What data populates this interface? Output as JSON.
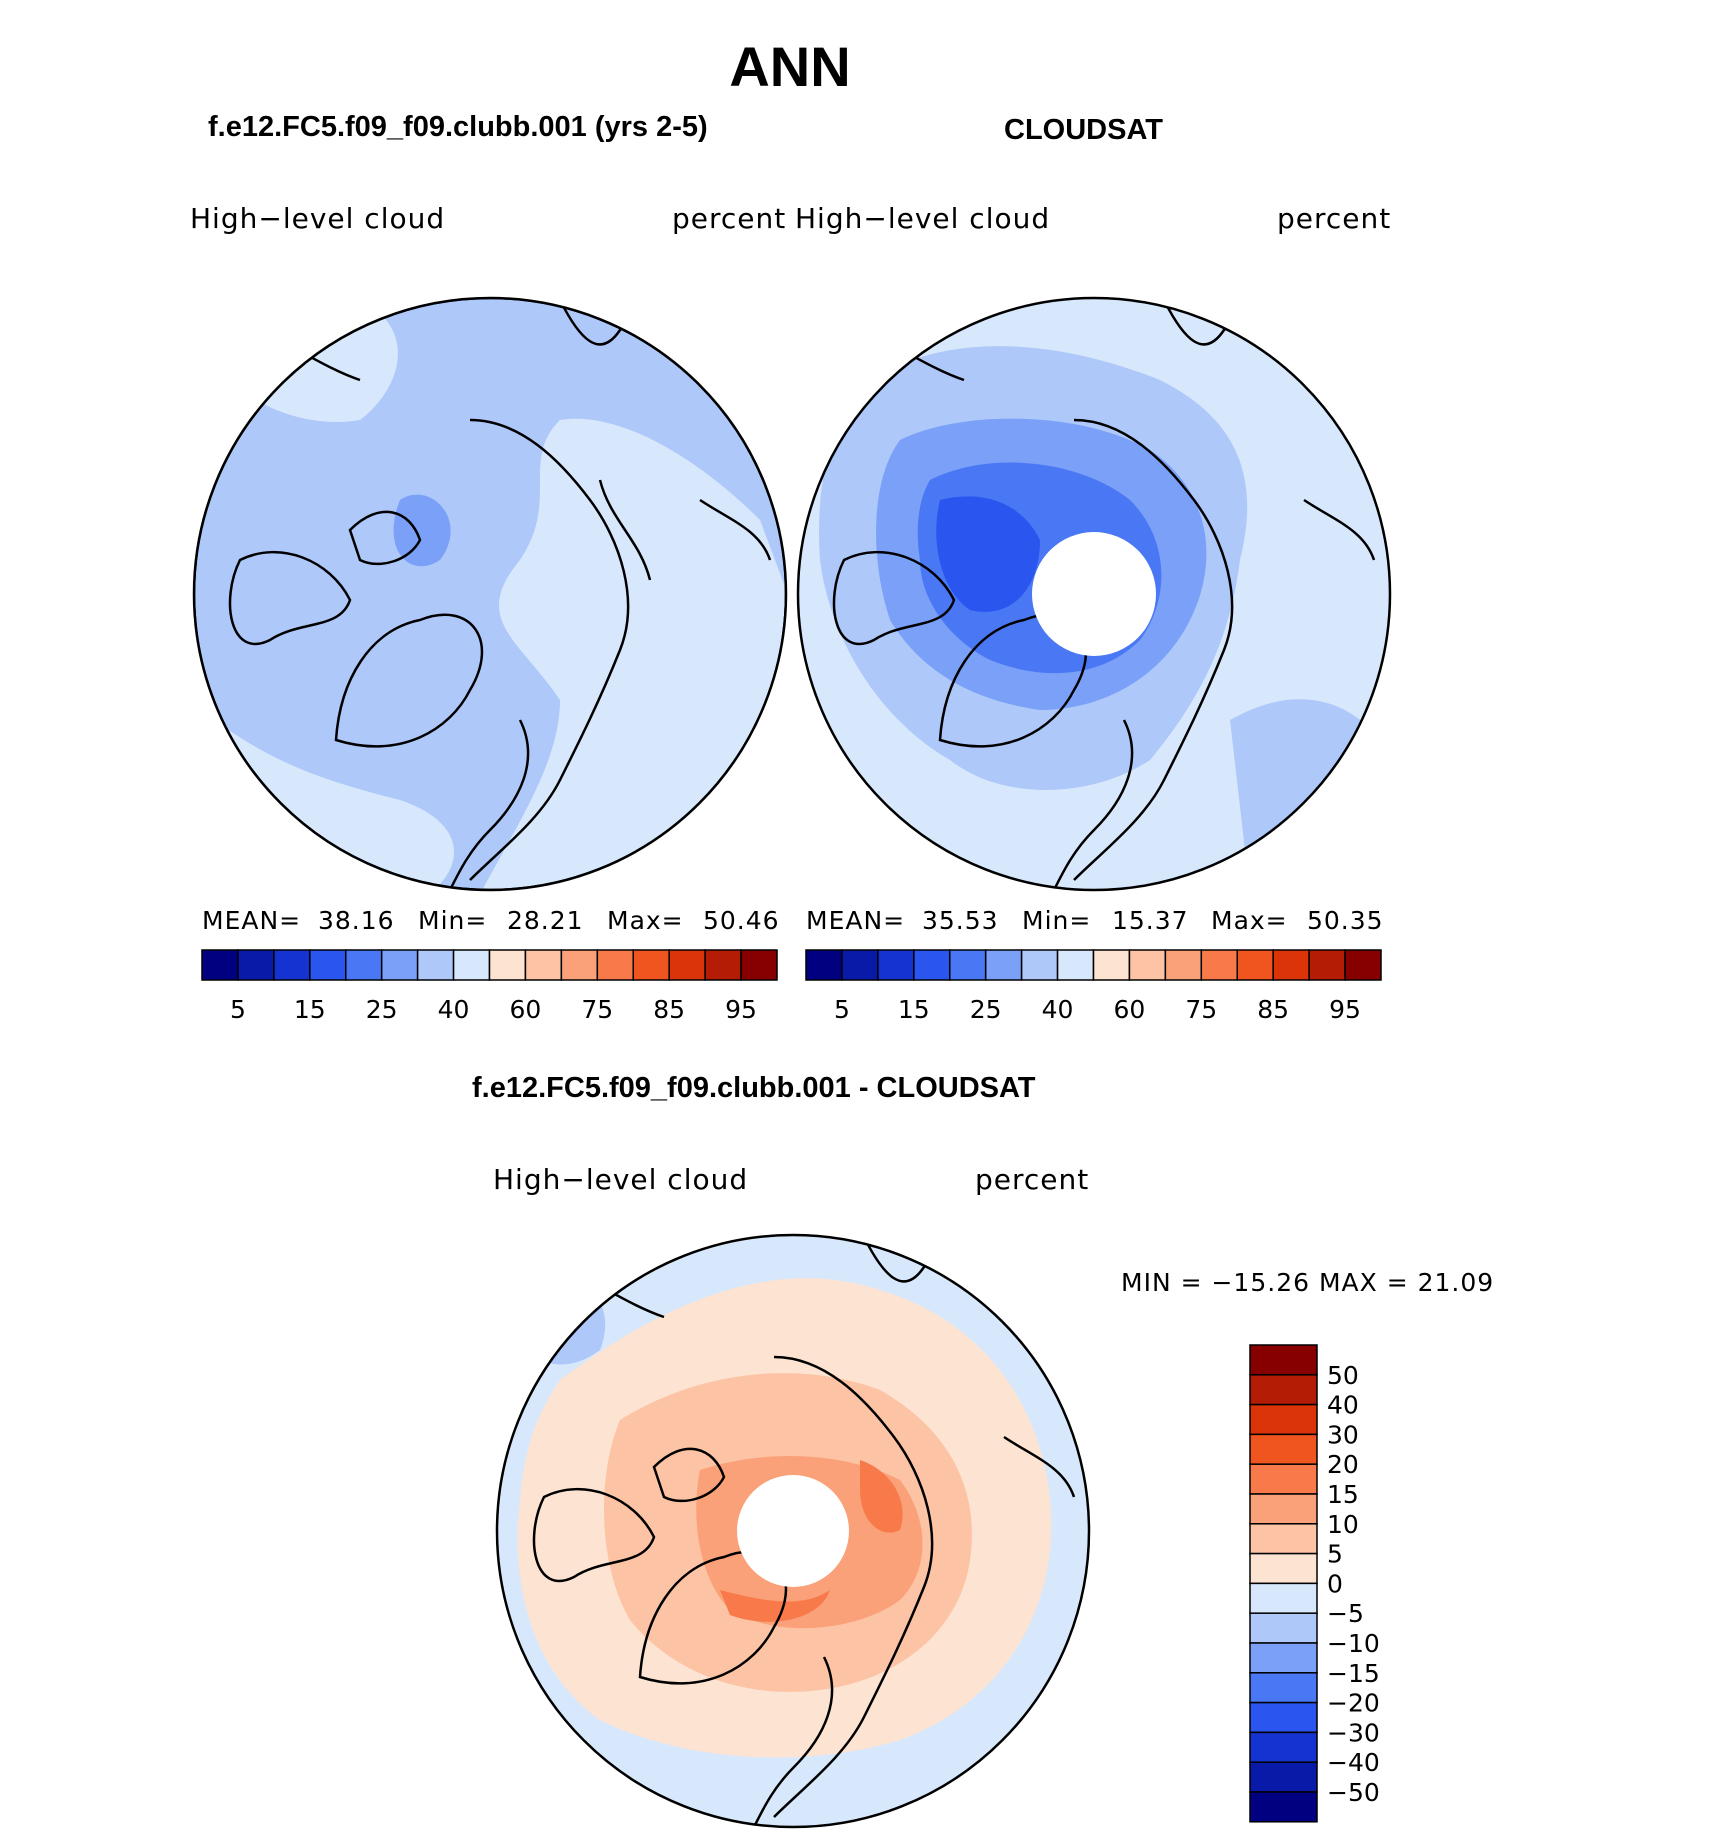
{
  "title": "ANN",
  "panels": [
    {
      "id": "model",
      "heading": "f.e12.FC5.f09_f09.clubb.001 (yrs 2-5)",
      "variable": "High−level  cloud",
      "units": "percent",
      "stats": {
        "mean_label": "MEAN=",
        "mean": "38.16",
        "min_label": "Min=",
        "min": "28.21",
        "max_label": "Max=",
        "max": "50.46"
      },
      "hole_fraction": 0
    },
    {
      "id": "obs",
      "heading": "CLOUDSAT",
      "variable": "High−level  cloud",
      "units": "percent",
      "stats": {
        "mean_label": "MEAN=",
        "mean": "35.53",
        "min_label": "Min=",
        "min": "15.37",
        "max_label": "Max=",
        "max": "50.35"
      },
      "hole_fraction": 0.21
    },
    {
      "id": "diff",
      "heading": "f.e12.FC5.f09_f09.clubb.001 - CLOUDSAT",
      "variable": "High−level  cloud",
      "units": "percent",
      "stats": {
        "text": "MIN = −15.26 MAX =   21.09"
      },
      "hole_fraction": 0.19
    }
  ],
  "colorbar_abs": {
    "colors": [
      "#000080",
      "#0a1aa8",
      "#1433d0",
      "#2a55ee",
      "#4a78f5",
      "#7aa0f8",
      "#aec8fa",
      "#d8e8fc",
      "#fde3d2",
      "#fcc3a5",
      "#faa179",
      "#f87a4a",
      "#f0541f",
      "#db3408",
      "#b41c06",
      "#870000"
    ],
    "labels": [
      "5",
      "15",
      "25",
      "40",
      "60",
      "75",
      "85",
      "95"
    ]
  },
  "colorbar_diff": {
    "colors": [
      "#870000",
      "#b41c06",
      "#db3408",
      "#f0541f",
      "#f87a4a",
      "#faa179",
      "#fcc3a5",
      "#fde3d2",
      "#d8e8fc",
      "#aec8fa",
      "#7aa0f8",
      "#4a78f5",
      "#2a55ee",
      "#1433d0",
      "#0a1aa8",
      "#000080"
    ],
    "labels": [
      "50",
      "40",
      "30",
      "20",
      "15",
      "10",
      "5",
      "0",
      "−5",
      "−10",
      "−15",
      "−20",
      "−30",
      "−40",
      "−50"
    ]
  },
  "palette": {
    "light_blue": "#d8e8fc",
    "mid_blue": "#aec8fa",
    "blue": "#7aa0f8",
    "strong_blue": "#4a78f5",
    "deep_blue": "#2a55ee",
    "light_orange": "#fde3d2",
    "orange": "#fcc3a5",
    "strong_orange": "#faa179",
    "deep_orange": "#f87a4a"
  }
}
